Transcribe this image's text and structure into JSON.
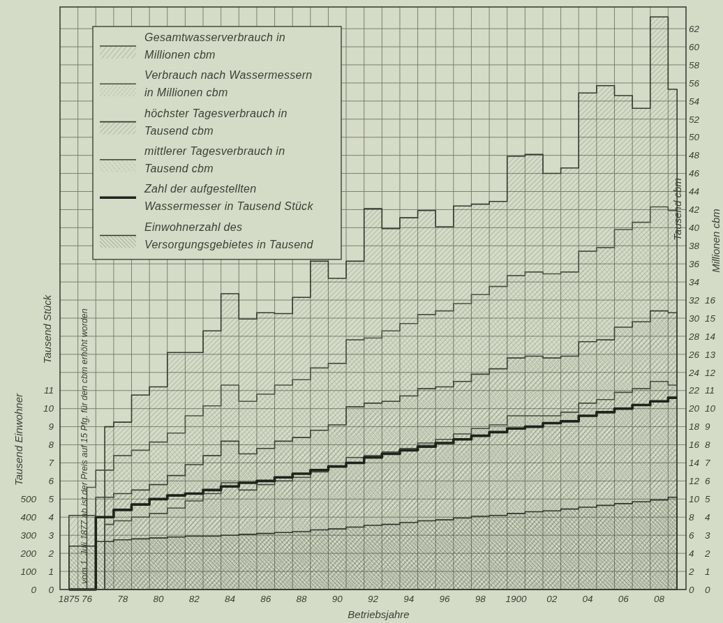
{
  "chart_data": {
    "type": "area",
    "xlabel": "Betriebsjahre",
    "ylabel": "Tausend Stück",
    "y2label": "Tausend cbm",
    "y3label": "Tausend Einwohner",
    "categories": [
      "1875",
      "76",
      null,
      "78",
      null,
      "80",
      null,
      "82",
      null,
      "84",
      null,
      "86",
      null,
      "88",
      null,
      "90",
      null,
      "92",
      null,
      "94",
      null,
      "96",
      null,
      "98",
      null,
      "1900",
      null,
      "02",
      null,
      "04",
      null,
      "06",
      null,
      "08",
      null
    ],
    "ylim": [
      0,
      32.2
    ],
    "yticks": [
      0,
      1,
      2,
      3,
      4,
      5,
      6,
      7,
      8,
      9,
      10,
      11
    ],
    "y2lim": [
      0,
      64.4
    ],
    "y2ticks": [
      {
        "value": 0,
        "label": "0 0"
      },
      {
        "value": 2,
        "label": "2 1"
      },
      {
        "value": 4,
        "label": "4 2"
      },
      {
        "value": 6,
        "label": "6 3"
      },
      {
        "value": 8,
        "label": "8 4"
      },
      {
        "value": 10,
        "label": "10 5"
      },
      {
        "value": 12,
        "label": "12 6"
      },
      {
        "value": 14,
        "label": "14 7"
      },
      {
        "value": 16,
        "label": "16 8"
      },
      {
        "value": 18,
        "label": "18 9"
      },
      {
        "value": 20,
        "label": "20 10"
      },
      {
        "value": 22,
        "label": "22 11"
      },
      {
        "value": 24,
        "label": "24 12"
      },
      {
        "value": 26,
        "label": "26 13"
      },
      {
        "value": 28,
        "label": "28 14"
      },
      {
        "value": 30,
        "label": "30 15"
      },
      {
        "value": 32,
        "label": "32 16"
      },
      34,
      36,
      38,
      40,
      42,
      44,
      46,
      48,
      50,
      52,
      54,
      56,
      58,
      60,
      62
    ],
    "y3lim": [
      0,
      3220
    ],
    "y3ticks": [
      0,
      100,
      200,
      300,
      400,
      500
    ],
    "grid": true,
    "legend": "top left",
    "annotations": [
      "vom 1. Juli 1877 ab ist der Preis auf 15 Pfg. für den cbm erhöht worden",
      "Millionen cbm"
    ],
    "series": [
      {
        "name": "Gesamtwasserverbrauch in\nMillionen cbm",
        "color": "#3a4236",
        "values": [
          4.1,
          4.1,
          5.1,
          5.3,
          5.5,
          5.8,
          6.3,
          6.9,
          7.4,
          8.2,
          7.5,
          7.8,
          8.2,
          8.4,
          8.8,
          9.1,
          10.1,
          10.3,
          10.4,
          10.7,
          11.1,
          11.2,
          11.5,
          11.9,
          12.2,
          12.8,
          12.9,
          12.8,
          12.9,
          13.7,
          13.8,
          14.5,
          14.8,
          15.4,
          15.3
        ]
      },
      {
        "name": "Verbrauch nach Wassermessern\nin Millionen cbm",
        "color": "#444c3f",
        "values": [
          null,
          null,
          3.6,
          3.8,
          4.0,
          4.2,
          4.5,
          4.9,
          5.3,
          5.9,
          5.5,
          5.8,
          6.0,
          6.2,
          6.5,
          6.8,
          7.3,
          7.4,
          7.6,
          7.8,
          8.1,
          8.3,
          8.6,
          8.9,
          9.1,
          9.6,
          9.6,
          9.6,
          9.8,
          10.3,
          10.5,
          10.9,
          11.1,
          11.5,
          11.3
        ]
      },
      {
        "name": "höchster Tagesverbrauch in\nTausend cbm",
        "color": "#333b30",
        "axis": "y2",
        "values": [
          null,
          null,
          18.0,
          18.5,
          21.5,
          22.4,
          26.2,
          26.2,
          28.6,
          32.7,
          29.9,
          30.6,
          30.5,
          32.3,
          36.3,
          34.4,
          36.3,
          42.1,
          39.9,
          41.1,
          41.9,
          40.1,
          42.4,
          42.6,
          42.9,
          47.9,
          48.1,
          46.0,
          46.6,
          54.9,
          55.7,
          54.6,
          53.2,
          63.3,
          55.3
        ]
      },
      {
        "name": "mittlerer Tagesverbrauch in\nTausend cbm",
        "color": "#4b5346",
        "axis": "y2",
        "values": [
          null,
          11.3,
          13.2,
          14.8,
          15.4,
          16.3,
          17.3,
          19.2,
          20.3,
          22.6,
          20.8,
          21.6,
          22.6,
          23.2,
          24.5,
          25.0,
          27.6,
          27.8,
          28.6,
          29.4,
          30.4,
          30.8,
          31.6,
          32.6,
          33.5,
          34.7,
          35.1,
          34.9,
          35.1,
          37.4,
          37.8,
          39.8,
          40.6,
          42.3,
          41.9
        ]
      },
      {
        "name": "Zahl der aufgestellten\nWassermesser in Tausend Stück",
        "type": "step",
        "color": "#1e231c",
        "values": [
          0,
          0,
          4.0,
          4.4,
          4.7,
          5.0,
          5.2,
          5.3,
          5.5,
          5.7,
          5.9,
          6.0,
          6.2,
          6.4,
          6.6,
          6.8,
          7.0,
          7.3,
          7.5,
          7.7,
          7.9,
          8.1,
          8.3,
          8.5,
          8.7,
          8.9,
          9.0,
          9.2,
          9.3,
          9.6,
          9.8,
          10.0,
          10.2,
          10.4,
          10.6
        ]
      },
      {
        "name": "Einwohnerzahl des\nVersorgungsgebietes in Tausend",
        "color": "#2e362b",
        "axis": "y3",
        "values": [
          240,
          240,
          265,
          275,
          280,
          285,
          290,
          295,
          295,
          300,
          305,
          310,
          315,
          320,
          330,
          335,
          345,
          355,
          360,
          370,
          380,
          385,
          395,
          405,
          410,
          420,
          430,
          435,
          445,
          455,
          465,
          475,
          485,
          495,
          510
        ]
      }
    ]
  }
}
